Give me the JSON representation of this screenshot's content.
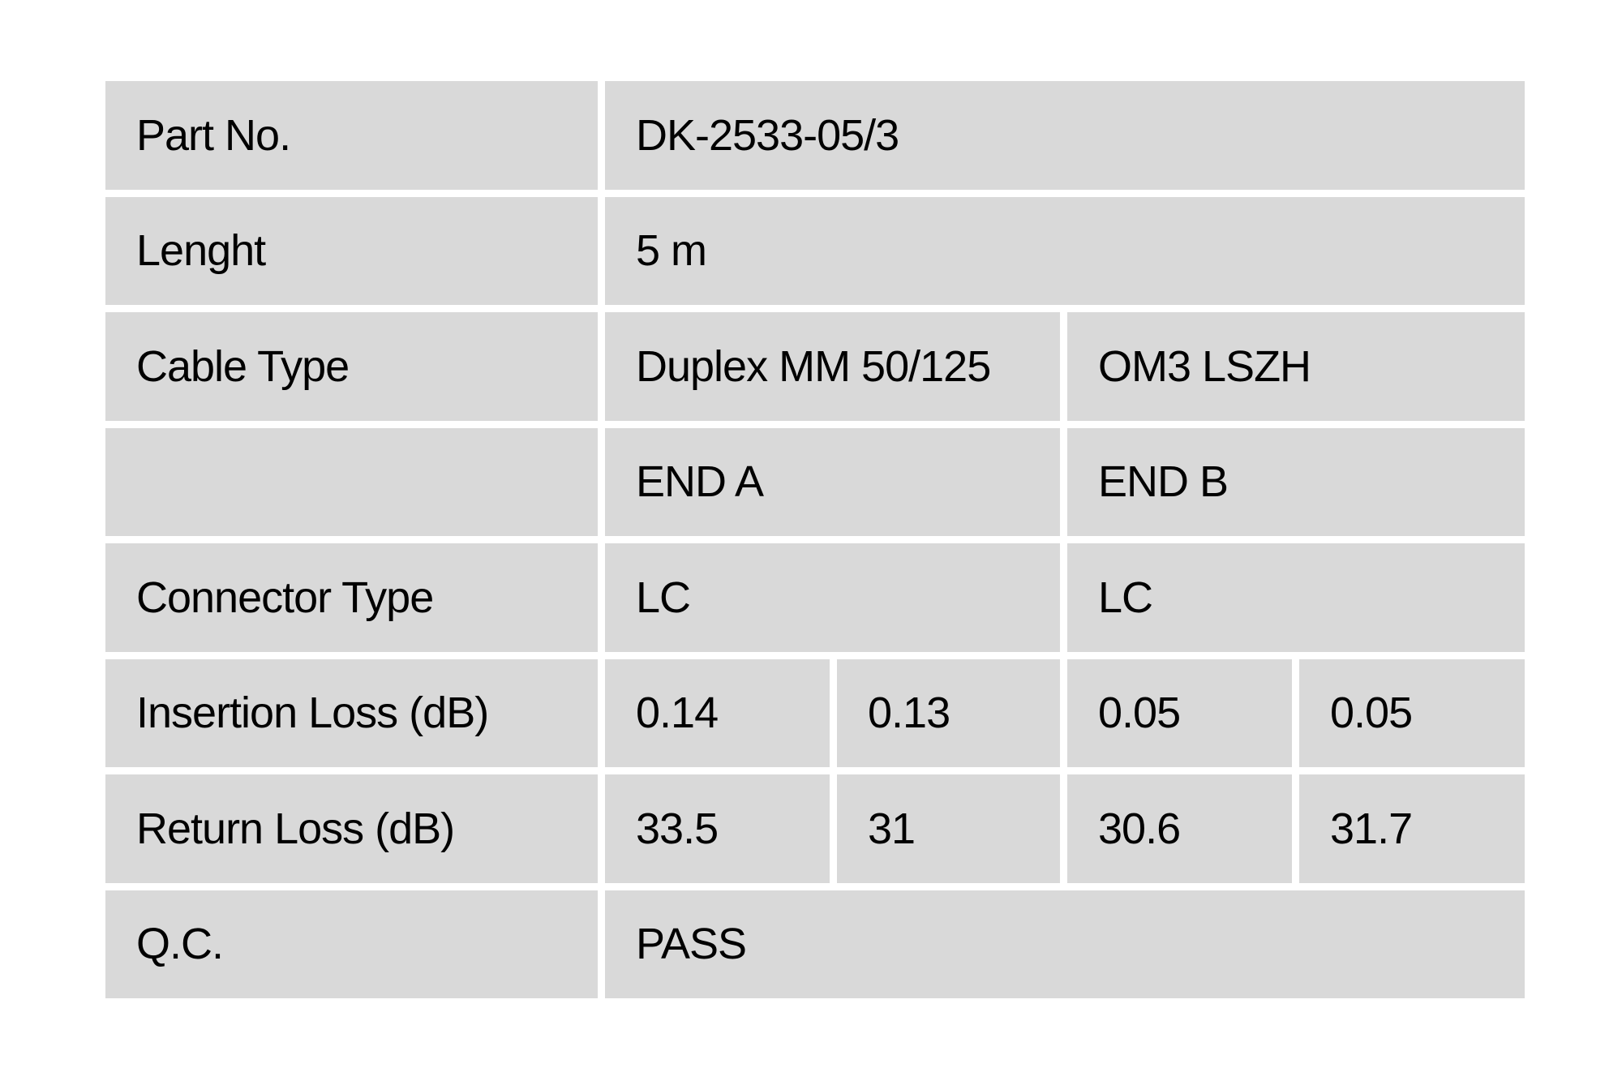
{
  "colors": {
    "page_background": "#ffffff",
    "cell_background": "#d9d9d9",
    "text": "#000000"
  },
  "table": {
    "part_no": {
      "label": "Part No.",
      "value": "DK-2533-05/3"
    },
    "length": {
      "label": "Lenght",
      "value": "5 m"
    },
    "cable_type": {
      "label": "Cable Type",
      "value_a": "Duplex MM 50/125",
      "value_b": "OM3 LSZH"
    },
    "ends_header": {
      "label": "",
      "end_a": "END A",
      "end_b": "END B"
    },
    "connector_type": {
      "label": "Connector Type",
      "end_a": "LC",
      "end_b": "LC"
    },
    "insertion_loss": {
      "label": "Insertion Loss (dB)",
      "values": [
        "0.14",
        "0.13",
        "0.05",
        "0.05"
      ]
    },
    "return_loss": {
      "label": "Return Loss (dB)",
      "values": [
        "33.5",
        "31",
        "30.6",
        "31.7"
      ]
    },
    "qc": {
      "label": "Q.C.",
      "value": "PASS"
    }
  }
}
